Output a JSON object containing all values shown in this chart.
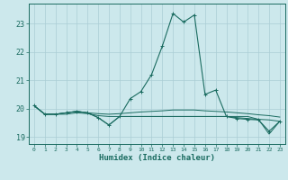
{
  "xlabel": "Humidex (Indice chaleur)",
  "background_color": "#cce8ec",
  "grid_color": "#aacdd4",
  "line_color": "#1a6b60",
  "x_hours": [
    0,
    1,
    2,
    3,
    4,
    5,
    6,
    7,
    8,
    9,
    10,
    11,
    12,
    13,
    14,
    15,
    16,
    17,
    18,
    19,
    20,
    21,
    22,
    23
  ],
  "s0": [
    20.1,
    19.8,
    19.8,
    19.85,
    19.9,
    19.85,
    19.82,
    19.8,
    19.82,
    19.85,
    19.88,
    19.9,
    19.92,
    19.95,
    19.95,
    19.95,
    19.92,
    19.9,
    19.88,
    19.85,
    19.82,
    19.78,
    19.75,
    19.7
  ],
  "s1": [
    20.1,
    19.8,
    19.8,
    19.8,
    19.85,
    19.82,
    19.75,
    19.72,
    19.72,
    19.72,
    19.72,
    19.72,
    19.72,
    19.72,
    19.72,
    19.72,
    19.72,
    19.72,
    19.72,
    19.68,
    19.65,
    19.62,
    19.6,
    19.55
  ],
  "s2": [
    20.1,
    19.8,
    19.8,
    19.85,
    19.9,
    19.85,
    19.68,
    19.42,
    19.72,
    19.72,
    19.72,
    19.72,
    19.72,
    19.72,
    19.72,
    19.72,
    19.72,
    19.72,
    19.72,
    19.72,
    19.72,
    19.62,
    19.1,
    19.55
  ],
  "s3": [
    20.1,
    19.8,
    19.8,
    19.85,
    19.9,
    19.85,
    19.68,
    19.42,
    19.72,
    20.35,
    20.6,
    21.2,
    22.2,
    23.35,
    23.05,
    23.3,
    20.5,
    20.65,
    19.72,
    19.65,
    19.62,
    19.6,
    19.2,
    19.55
  ],
  "ylim": [
    18.75,
    23.7
  ],
  "xlim": [
    -0.5,
    23.5
  ],
  "yticks": [
    19,
    20,
    21,
    22,
    23
  ],
  "xticks": [
    0,
    1,
    2,
    3,
    4,
    5,
    6,
    7,
    8,
    9,
    10,
    11,
    12,
    13,
    14,
    15,
    16,
    17,
    18,
    19,
    20,
    21,
    22,
    23
  ]
}
